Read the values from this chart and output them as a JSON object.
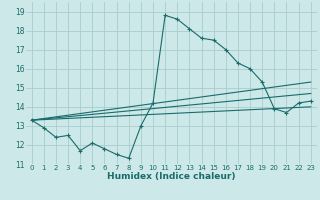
{
  "xlabel": "Humidex (Indice chaleur)",
  "bg_color": "#cce8e8",
  "grid_color": "#aacccc",
  "line_color": "#1a6b6b",
  "xlim": [
    -0.5,
    23.5
  ],
  "ylim": [
    11,
    19.5
  ],
  "xticks": [
    0,
    1,
    2,
    3,
    4,
    5,
    6,
    7,
    8,
    9,
    10,
    11,
    12,
    13,
    14,
    15,
    16,
    17,
    18,
    19,
    20,
    21,
    22,
    23
  ],
  "yticks": [
    11,
    12,
    13,
    14,
    15,
    16,
    17,
    18,
    19
  ],
  "series1_x": [
    0,
    1,
    2,
    3,
    4,
    5,
    6,
    7,
    8,
    9,
    10,
    11,
    12,
    13,
    14,
    15,
    16,
    17,
    18,
    19,
    20,
    21,
    22,
    23
  ],
  "series1_y": [
    13.3,
    12.9,
    12.4,
    12.5,
    11.7,
    12.1,
    11.8,
    11.5,
    11.3,
    13.0,
    14.2,
    18.8,
    18.6,
    18.1,
    17.6,
    17.5,
    17.0,
    16.3,
    16.0,
    15.3,
    13.9,
    13.7,
    14.2,
    14.3
  ],
  "series2_x": [
    0,
    23
  ],
  "series2_y": [
    13.3,
    14.0
  ],
  "series3_x": [
    0,
    23
  ],
  "series3_y": [
    13.3,
    15.3
  ],
  "series4_x": [
    0,
    23
  ],
  "series4_y": [
    13.3,
    14.7
  ]
}
